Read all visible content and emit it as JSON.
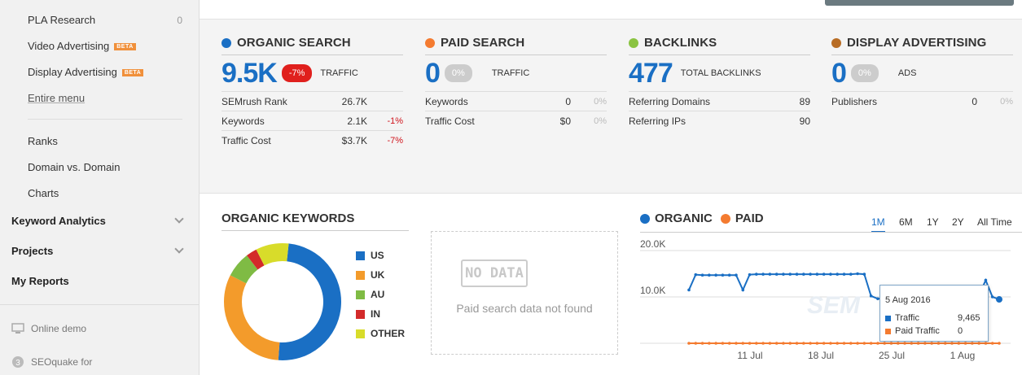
{
  "sidebar": {
    "items": [
      {
        "label": "PLA Research",
        "count": "0"
      },
      {
        "label": "Video Advertising",
        "badge": "BETA"
      },
      {
        "label": "Display Advertising",
        "badge": "BETA"
      },
      {
        "label": "Entire menu"
      }
    ],
    "sub_items": [
      "Ranks",
      "Domain vs. Domain",
      "Charts"
    ],
    "sections": [
      "Keyword Analytics",
      "Projects",
      "My Reports"
    ],
    "footer": [
      "Online demo",
      "SEOquake for"
    ]
  },
  "overview": {
    "organic": {
      "title": "ORGANIC SEARCH",
      "color": "#1a6fc4",
      "value": "9.5K",
      "change": "-7%",
      "label": "TRAFFIC",
      "rows": [
        {
          "label": "SEMrush Rank",
          "value": "26.7K",
          "change": ""
        },
        {
          "label": "Keywords",
          "value": "2.1K",
          "change": "-1%"
        },
        {
          "label": "Traffic Cost",
          "value": "$3.7K",
          "change": "-7%"
        }
      ]
    },
    "paid": {
      "title": "PAID SEARCH",
      "color": "#f47b30",
      "value": "0",
      "change": "0%",
      "label": "TRAFFIC",
      "rows": [
        {
          "label": "Keywords",
          "value": "0",
          "change": "0%"
        },
        {
          "label": "Traffic Cost",
          "value": "$0",
          "change": "0%"
        }
      ]
    },
    "backlinks": {
      "title": "BACKLINKS",
      "color": "#8ac341",
      "value": "477",
      "label": "TOTAL BACKLINKS",
      "rows": [
        {
          "label": "Referring Domains",
          "value": "89"
        },
        {
          "label": "Referring IPs",
          "value": "90"
        }
      ]
    },
    "display": {
      "title": "DISPLAY ADVERTISING",
      "color": "#b86c24",
      "value": "0",
      "change": "0%",
      "label": "ADS",
      "rows": [
        {
          "label": "Publishers",
          "value": "0",
          "change": "0%"
        }
      ]
    }
  },
  "keywords": {
    "title": "ORGANIC KEYWORDS",
    "legend": [
      {
        "label": "US",
        "color": "#1a6fc4"
      },
      {
        "label": "UK",
        "color": "#f39b2b"
      },
      {
        "label": "AU",
        "color": "#7fbb44"
      },
      {
        "label": "IN",
        "color": "#d32a2a"
      },
      {
        "label": "OTHER",
        "color": "#d8dc2a"
      }
    ]
  },
  "nodata": {
    "icon_text": "NO DATA",
    "message": "Paid search data not found"
  },
  "traffic": {
    "series_labels": [
      "ORGANIC",
      "PAID"
    ],
    "series_colors": [
      "#1a6fc4",
      "#f47b30"
    ],
    "timeframes": [
      "1M",
      "6M",
      "1Y",
      "2Y",
      "All Time"
    ],
    "active_timeframe": "1M",
    "tooltip": {
      "date": "5 Aug 2016",
      "rows": [
        {
          "label": "Traffic",
          "value": "9,465",
          "color": "#1a6fc4"
        },
        {
          "label": "Paid Traffic",
          "value": "0",
          "color": "#f47b30"
        }
      ]
    }
  },
  "chart_data": [
    {
      "type": "pie",
      "title": "ORGANIC KEYWORDS",
      "categories": [
        "US",
        "UK",
        "AU",
        "IN",
        "OTHER"
      ],
      "values": [
        49,
        31,
        7,
        3,
        9
      ]
    },
    {
      "type": "line",
      "y_ticks": [
        "20.0K",
        "10.0K"
      ],
      "ylim": [
        0,
        20000
      ],
      "x_ticks": [
        "11 Jul",
        "18 Jul",
        "25 Jul",
        "1 Aug"
      ],
      "series": [
        {
          "name": "ORGANIC",
          "values": [
            11500,
            14800,
            14700,
            14700,
            14700,
            14700,
            14700,
            14700,
            11500,
            14800,
            14900,
            14900,
            14900,
            14900,
            14900,
            14900,
            14900,
            14900,
            14900,
            14900,
            14900,
            14900,
            14900,
            14900,
            14900,
            15000,
            14900,
            10200,
            9600,
            9700,
            10300,
            10200,
            10300,
            10300,
            10300,
            10300,
            10300,
            10300,
            10400,
            10300,
            10300,
            10300,
            10300,
            10400,
            13600,
            10000,
            9465
          ]
        },
        {
          "name": "PAID",
          "values": [
            0,
            0,
            0,
            0,
            0,
            0,
            0,
            0,
            0,
            0,
            0,
            0,
            0,
            0,
            0,
            0,
            0,
            0,
            0,
            0,
            0,
            0,
            0,
            0,
            0,
            0,
            0,
            0,
            0,
            0,
            0,
            0,
            0,
            0,
            0,
            0,
            0,
            0,
            0,
            0,
            0,
            0,
            0,
            0,
            0,
            0,
            0
          ]
        }
      ]
    }
  ]
}
